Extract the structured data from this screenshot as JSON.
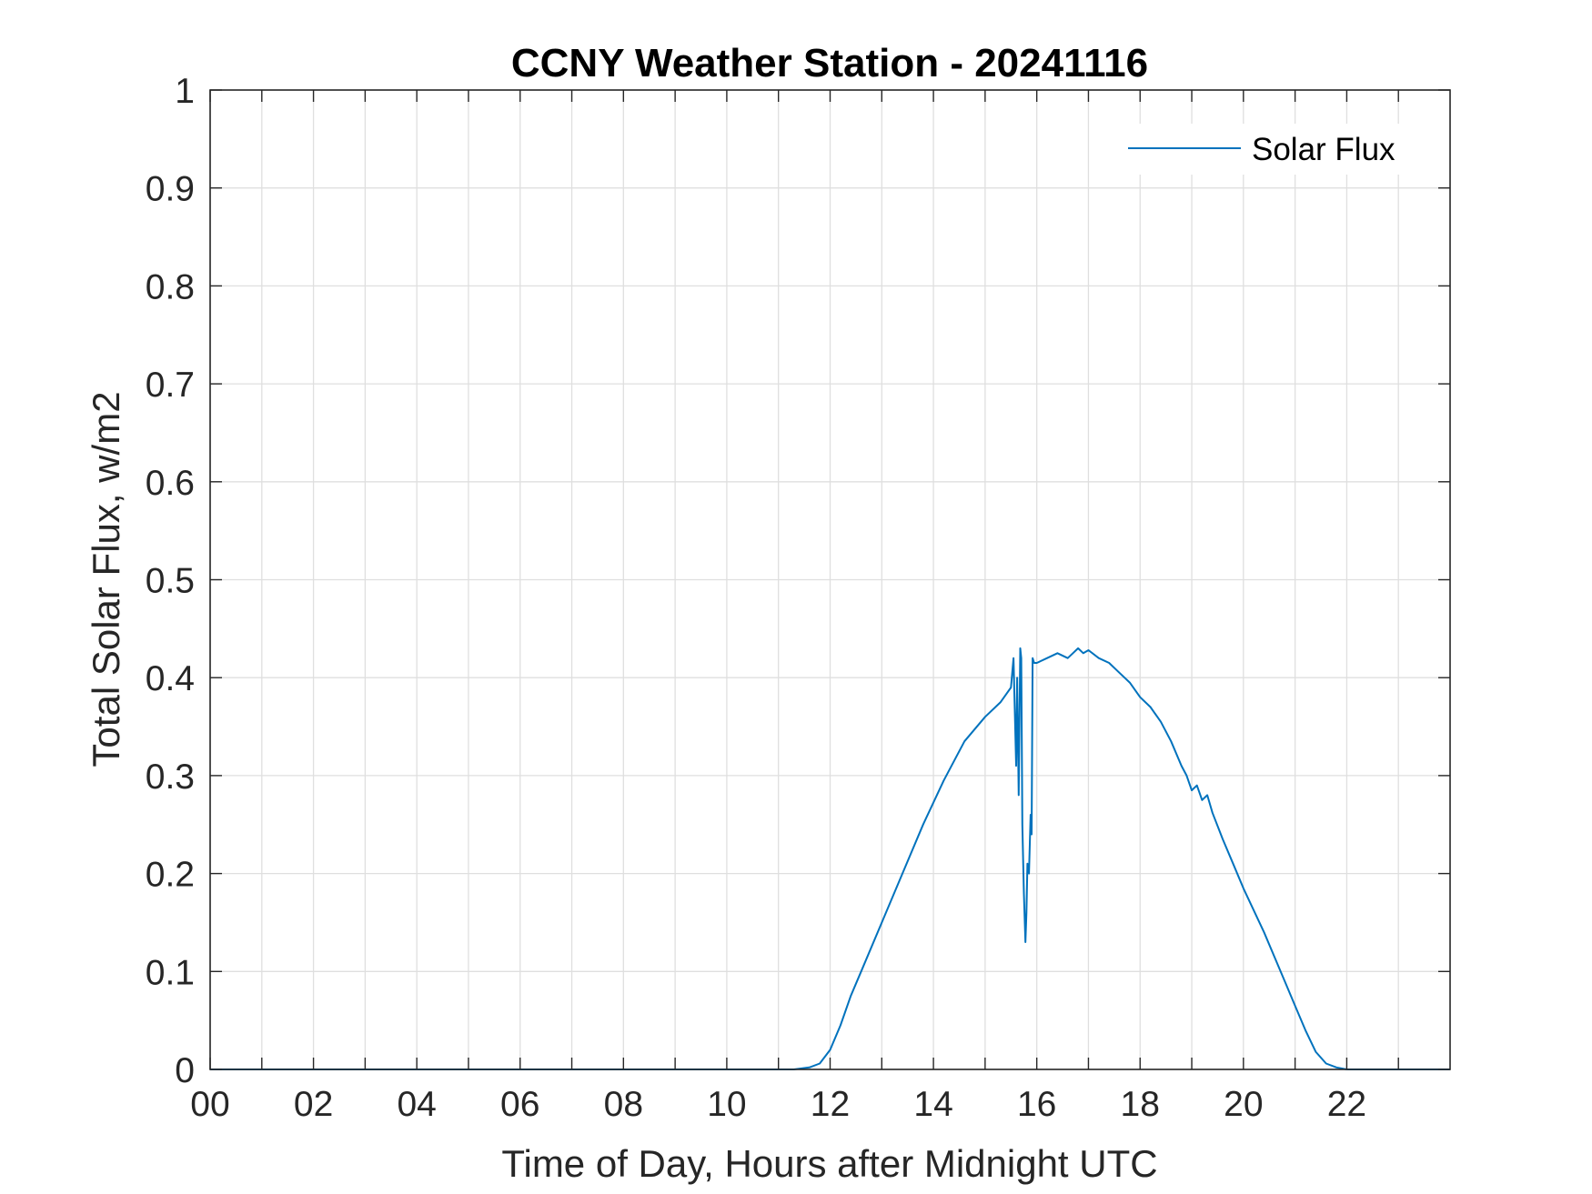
{
  "chart_data": {
    "type": "line",
    "title": "CCNY Weather Station - 20241116",
    "xlabel": "Time of Day, Hours after Midnight UTC",
    "ylabel": "Total Solar Flux, w/m2",
    "xlim": [
      0,
      24
    ],
    "ylim": [
      0,
      1
    ],
    "x_ticks": [
      0,
      2,
      4,
      6,
      8,
      10,
      12,
      14,
      16,
      18,
      20,
      22
    ],
    "x_tick_labels": [
      "00",
      "02",
      "04",
      "06",
      "08",
      "10",
      "12",
      "14",
      "16",
      "18",
      "20",
      "22"
    ],
    "x_minor_gridlines": [
      1,
      3,
      5,
      7,
      9,
      11,
      13,
      15,
      17,
      19,
      21,
      23
    ],
    "y_ticks": [
      0,
      0.1,
      0.2,
      0.3,
      0.4,
      0.5,
      0.6,
      0.7,
      0.8,
      0.9,
      1
    ],
    "y_tick_labels": [
      "0",
      "0.1",
      "0.2",
      "0.3",
      "0.4",
      "0.5",
      "0.6",
      "0.7",
      "0.8",
      "0.9",
      "1"
    ],
    "grid": true,
    "legend_position": "top-right",
    "series": [
      {
        "name": "Solar Flux",
        "color": "#0072BD",
        "x": [
          0,
          11.3,
          11.6,
          11.8,
          12.0,
          12.2,
          12.4,
          12.6,
          13.0,
          13.4,
          13.8,
          14.2,
          14.6,
          15.0,
          15.3,
          15.5,
          15.55,
          15.6,
          15.62,
          15.65,
          15.68,
          15.7,
          15.72,
          15.75,
          15.78,
          15.8,
          15.82,
          15.85,
          15.88,
          15.9,
          15.92,
          15.95,
          16.0,
          16.2,
          16.4,
          16.6,
          16.7,
          16.8,
          16.9,
          17.0,
          17.2,
          17.4,
          17.6,
          17.8,
          18.0,
          18.2,
          18.4,
          18.6,
          18.8,
          18.9,
          19.0,
          19.1,
          19.2,
          19.3,
          19.4,
          19.6,
          19.8,
          20.0,
          20.4,
          20.8,
          21.0,
          21.2,
          21.4,
          21.6,
          21.8,
          22.0,
          24.0
        ],
        "y": [
          0,
          0,
          0.002,
          0.006,
          0.02,
          0.045,
          0.075,
          0.1,
          0.15,
          0.2,
          0.25,
          0.295,
          0.335,
          0.36,
          0.375,
          0.39,
          0.42,
          0.31,
          0.4,
          0.28,
          0.43,
          0.42,
          0.25,
          0.18,
          0.13,
          0.16,
          0.21,
          0.2,
          0.26,
          0.24,
          0.42,
          0.415,
          0.415,
          0.42,
          0.425,
          0.42,
          0.425,
          0.43,
          0.425,
          0.428,
          0.42,
          0.415,
          0.405,
          0.395,
          0.38,
          0.37,
          0.355,
          0.335,
          0.31,
          0.3,
          0.285,
          0.29,
          0.275,
          0.28,
          0.262,
          0.235,
          0.21,
          0.185,
          0.14,
          0.09,
          0.065,
          0.04,
          0.018,
          0.006,
          0.002,
          0,
          0
        ]
      }
    ]
  }
}
